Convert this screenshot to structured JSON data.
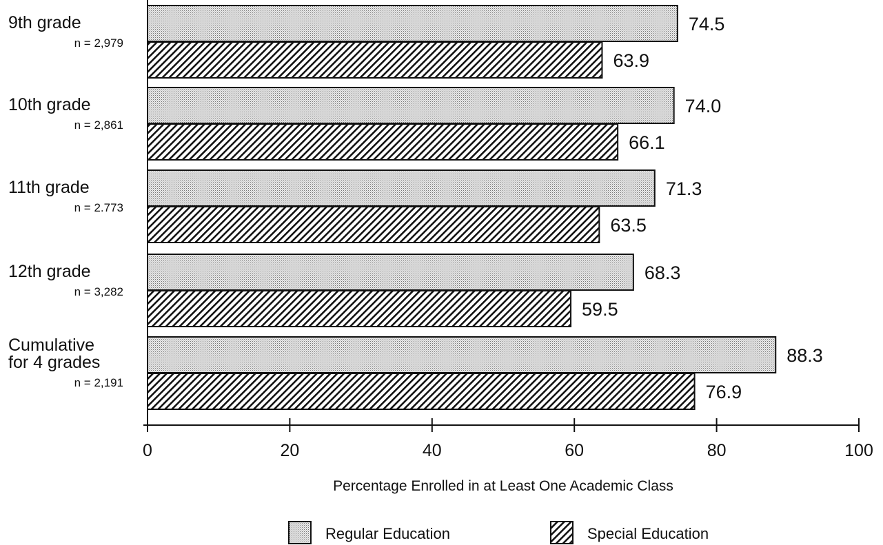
{
  "chart_data": {
    "type": "bar",
    "orientation": "horizontal",
    "categories": [
      "9th grade",
      "10th grade",
      "11th grade",
      "12th grade",
      "Cumulative for 4 grades"
    ],
    "category_lines": [
      [
        "9th grade"
      ],
      [
        "10th grade"
      ],
      [
        "11th grade"
      ],
      [
        "12th grade"
      ],
      [
        "Cumulative",
        "for 4 grades"
      ]
    ],
    "sample_sizes": [
      "n = 2,979",
      "n = 2,861",
      "n = 2.773",
      "n = 3,282",
      "n = 2,191"
    ],
    "series": [
      {
        "name": "Regular Education",
        "pattern": "stipple",
        "values": [
          74.5,
          74.0,
          71.3,
          68.3,
          88.3
        ]
      },
      {
        "name": "Special Education",
        "pattern": "hatch",
        "values": [
          63.9,
          66.1,
          63.5,
          59.5,
          76.9
        ]
      }
    ],
    "value_labels": [
      [
        "74.5",
        "74.0",
        "71.3",
        "68.3",
        "88.3"
      ],
      [
        "63.9",
        "66.1",
        "63.5",
        "59.5",
        "76.9"
      ]
    ],
    "xlabel": "Percentage Enrolled in at Least One Academic Class",
    "xlim": [
      0,
      100
    ],
    "xticks": [
      0,
      20,
      40,
      60,
      80,
      100
    ],
    "grid": false,
    "legend_position": "bottom"
  }
}
